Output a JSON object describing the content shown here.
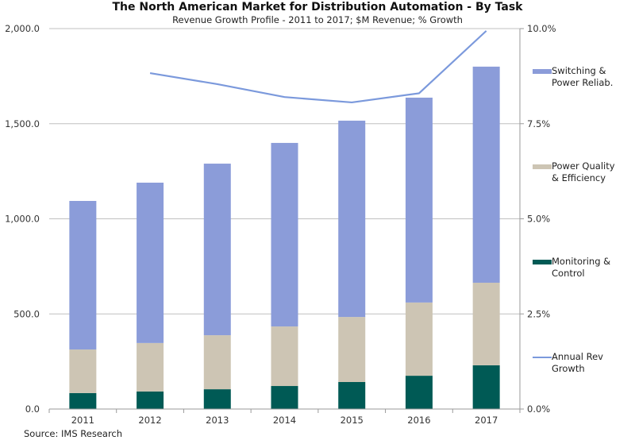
{
  "chart_data": {
    "type": "bar",
    "stacked": true,
    "title": "The North American Market for Distribution Automation - By Task",
    "subtitle": "Revenue Growth Profile - 2011 to 2017; $M Revenue; % Growth",
    "source": "Source: IMS Research",
    "categories": [
      "2011",
      "2012",
      "2013",
      "2014",
      "2015",
      "2016",
      "2017"
    ],
    "series": [
      {
        "name": "Monitoring & Control",
        "type": "bar",
        "axis": "left",
        "color": "#005a55",
        "values": [
          84,
          92,
          104,
          121,
          142,
          175,
          230
        ]
      },
      {
        "name": "Power Quality & Efficiency",
        "type": "bar",
        "axis": "left",
        "color": "#cdc5b4",
        "values": [
          229,
          255,
          284,
          313,
          342,
          385,
          434
        ]
      },
      {
        "name": "Switching & Power Reliab.",
        "type": "bar",
        "axis": "left",
        "color": "#8b9cd9",
        "values": [
          781,
          843,
          902,
          965,
          1032,
          1077,
          1136
        ]
      },
      {
        "name": "Annual Rev Growth",
        "type": "line",
        "axis": "right",
        "color": "#7b99dc",
        "values": [
          null,
          8.83,
          8.54,
          8.2,
          8.06,
          8.3,
          9.94
        ]
      }
    ],
    "yaxis_left": {
      "min": 0,
      "max": 2000,
      "ticks": [
        "0.0",
        "500.0",
        "1,000.0",
        "1,500.0",
        "2,000.0"
      ],
      "tick_values": [
        0,
        500,
        1000,
        1500,
        2000
      ]
    },
    "yaxis_right": {
      "min": 0,
      "max": 10,
      "ticks": [
        "0.0%",
        "2.5%",
        "5.0%",
        "7.5%",
        "10.0%"
      ],
      "tick_values": [
        0,
        2.5,
        5,
        7.5,
        10
      ]
    },
    "grid": true,
    "legend_position": "right",
    "legend": [
      {
        "label_lines": [
          "Switching &",
          "Power Reliab."
        ],
        "kind": "bar",
        "color": "#8b9cd9"
      },
      {
        "label_lines": [
          "Power Quality",
          "& Efficiency"
        ],
        "kind": "bar",
        "color": "#cdc5b4"
      },
      {
        "label_lines": [
          "Monitoring &",
          "Control"
        ],
        "kind": "bar",
        "color": "#005a55"
      },
      {
        "label_lines": [
          "Annual Rev",
          "Growth"
        ],
        "kind": "line",
        "color": "#7b99dc"
      }
    ]
  }
}
